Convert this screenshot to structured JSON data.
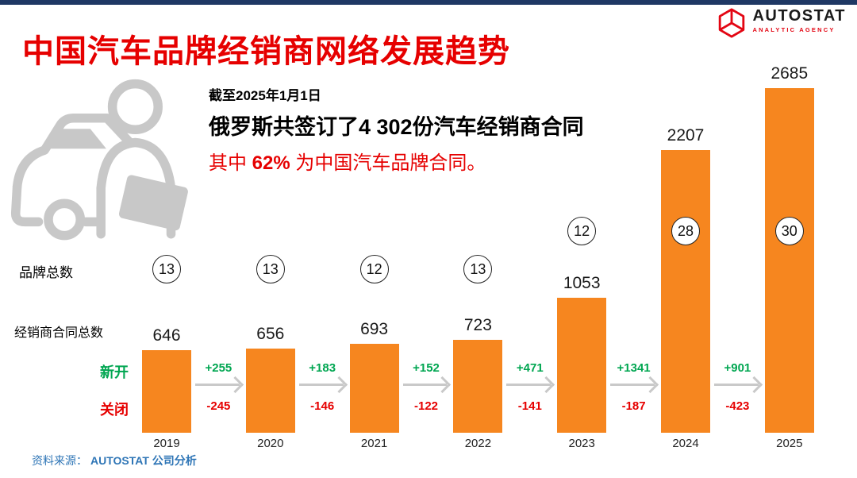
{
  "page": {
    "title": "中国汽车品牌经销商网络发展趋势"
  },
  "logo": {
    "name": "AUTOSTAT",
    "tagline": "ANALYTIC AGENCY"
  },
  "intro": {
    "as_of": "截至2025年1月1日",
    "headline": "俄罗斯共签订了4 302份汽车经销商合同",
    "sub_prefix": "其中 ",
    "sub_value": "62%",
    "sub_suffix": " 为中国汽车品牌合同。"
  },
  "row_labels": {
    "brands_total": "品牌总数",
    "contracts_total": "经销商合同总数",
    "opened": "新开",
    "closed": "关闭"
  },
  "footer": {
    "source_label": "资料来源：",
    "source_text": "AUTOSTAT 公司分析"
  },
  "colors": {
    "bar_orange": "#F6861F",
    "title_red": "#E60000",
    "opened_green": "#00A651",
    "closed_red": "#E60000",
    "top_bar_navy": "#1F3864",
    "source_blue": "#2E75B6",
    "arrow_gray": "#C9C9C9",
    "icon_gray": "#C8C8C8"
  },
  "chart_data": {
    "type": "bar",
    "title": "中国汽车品牌经销商网络发展趋势",
    "categories": [
      "2019",
      "2020",
      "2021",
      "2022",
      "2023",
      "2024",
      "2025"
    ],
    "series": [
      {
        "name": "经销商合同总数",
        "values": [
          646,
          656,
          693,
          723,
          1053,
          2207,
          2685
        ]
      },
      {
        "name": "品牌总数",
        "values": [
          13,
          13,
          12,
          13,
          12,
          28,
          30
        ]
      }
    ],
    "opened_between_years": [
      255,
      183,
      152,
      471,
      1341,
      901
    ],
    "closed_between_years": [
      245,
      146,
      122,
      141,
      187,
      423
    ],
    "xlabel": "",
    "ylabel": "经销商合同总数",
    "ylim": [
      0,
      2800
    ],
    "grid": false,
    "legend": "none"
  }
}
